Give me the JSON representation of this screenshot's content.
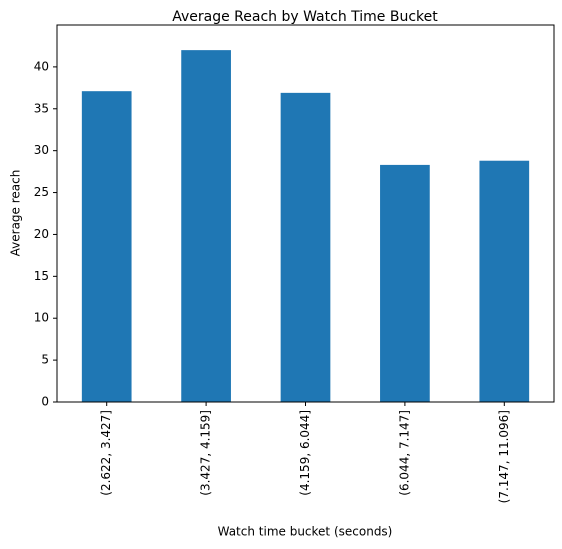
{
  "chart_data": {
    "type": "bar",
    "title": "Average Reach by Watch Time Bucket",
    "x_label": "Watch time bucket (seconds)",
    "y_label": "Average reach",
    "categories": [
      "(2.622, 3.427]",
      "(3.427, 4.159]",
      "(4.159, 6.044]",
      "(6.044, 7.147]",
      "(7.147, 11.096]"
    ],
    "values": [
      37.1,
      42.0,
      36.9,
      28.3,
      28.8
    ],
    "color": "#1f77b4",
    "ylim": [
      0,
      45
    ],
    "yticks": [
      0,
      5,
      10,
      15,
      20,
      25,
      30,
      35,
      40
    ],
    "grid": false
  }
}
